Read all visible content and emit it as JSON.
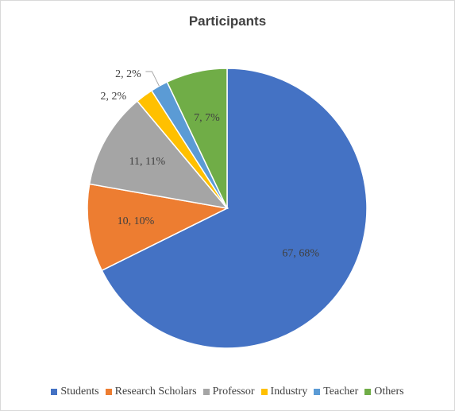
{
  "chart_data": {
    "type": "pie",
    "title": "Participants",
    "legend_position": "bottom",
    "categories": [
      "Students",
      "Research Scholars",
      "Professor",
      "Industry",
      "Teacher",
      "Others"
    ],
    "values": [
      67,
      10,
      11,
      2,
      2,
      7
    ],
    "percent_labels": [
      "67, 68%",
      "10, 10%",
      "11, 11%",
      "2, 2%",
      "2, 2%",
      "7, 7%"
    ],
    "colors": [
      "#4472C4",
      "#ED7D31",
      "#A5A5A5",
      "#FFC000",
      "#5B9BD5",
      "#70AD47"
    ]
  }
}
